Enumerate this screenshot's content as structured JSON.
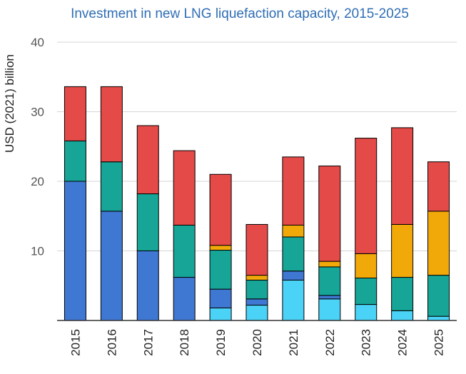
{
  "chart_data": {
    "type": "bar",
    "stacked": true,
    "title": "Investment in new LNG liquefaction capacity, 2015-2025",
    "ylabel": "USD (2021) billion",
    "xlabel": "",
    "ylim": [
      0,
      40
    ],
    "yticks": [
      10,
      20,
      30,
      40
    ],
    "grid": true,
    "legend": "none",
    "categories": [
      "2015",
      "2016",
      "2017",
      "2018",
      "2019",
      "2020",
      "2021",
      "2022",
      "2023",
      "2024",
      "2025"
    ],
    "series": [
      {
        "color": "#4ad3f7",
        "values": [
          0,
          0,
          0,
          0,
          1.8,
          2.2,
          5.8,
          3.1,
          2.3,
          1.4,
          0.6
        ]
      },
      {
        "color": "#3f78d3",
        "values": [
          20.0,
          15.7,
          10.0,
          6.2,
          2.7,
          0.9,
          1.3,
          0.5,
          0,
          0,
          0
        ]
      },
      {
        "color": "#16a597",
        "values": [
          5.8,
          7.1,
          8.2,
          7.5,
          5.6,
          2.7,
          4.9,
          4.1,
          3.8,
          4.8,
          5.9
        ]
      },
      {
        "color": "#f1a90a",
        "values": [
          0,
          0,
          0,
          0,
          0.7,
          0.7,
          1.7,
          0.8,
          3.5,
          7.6,
          9.2
        ]
      },
      {
        "color": "#e44a47",
        "values": [
          7.8,
          10.8,
          9.8,
          10.7,
          10.2,
          7.3,
          9.8,
          13.7,
          16.6,
          13.9,
          7.1
        ]
      }
    ]
  }
}
